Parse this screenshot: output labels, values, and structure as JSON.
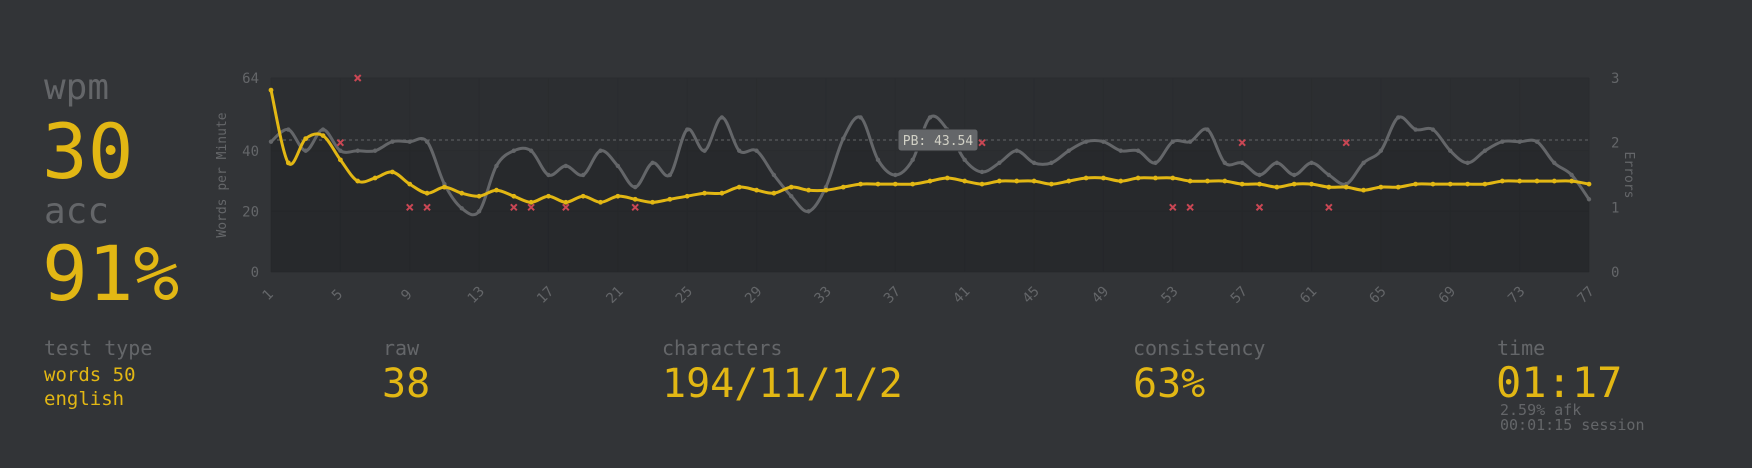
{
  "stats": {
    "wpm_label": "wpm",
    "wpm_value": "30",
    "acc_label": "acc",
    "acc_value": "91%",
    "test_type_label": "test type",
    "test_type_value1": "words 50",
    "test_type_value2": "english",
    "raw_label": "raw",
    "raw_value": "38",
    "characters_label": "characters",
    "characters_value": "194/11/1/2",
    "consistency_label": "consistency",
    "consistency_value": "63%",
    "time_label": "time",
    "time_value": "01:17",
    "afk_text": "2.59% afk",
    "session_text": "00:01:15 session"
  },
  "colors": {
    "background": "#323437",
    "main": "#e2b714",
    "sub": "#646669",
    "raw_line": "#646669",
    "error": "#ca4754"
  },
  "chart_data": {
    "type": "line",
    "ylabel": "Words per Minute",
    "y2label": "Errors",
    "ylim": [
      0,
      64
    ],
    "y2lim": [
      0,
      3
    ],
    "yticks": [
      "0",
      "20",
      "40",
      "64"
    ],
    "y2ticks": [
      "0",
      "1",
      "2",
      "3"
    ],
    "x": [
      1,
      2,
      3,
      4,
      5,
      6,
      7,
      8,
      9,
      10,
      11,
      12,
      13,
      14,
      15,
      16,
      17,
      18,
      19,
      20,
      21,
      22,
      23,
      24,
      25,
      26,
      27,
      28,
      29,
      30,
      31,
      32,
      33,
      34,
      35,
      36,
      37,
      38,
      39,
      40,
      41,
      42,
      43,
      44,
      45,
      46,
      47,
      48,
      49,
      50,
      51,
      52,
      53,
      54,
      55,
      56,
      57,
      58,
      59,
      60,
      61,
      62,
      63,
      64,
      65,
      66,
      67,
      68,
      69,
      70,
      71,
      72,
      73,
      74,
      75,
      76,
      77
    ],
    "xtick_labels": [
      "1",
      "5",
      "9",
      "13",
      "17",
      "21",
      "25",
      "29",
      "33",
      "37",
      "41",
      "45",
      "49",
      "53",
      "57",
      "61",
      "65",
      "69",
      "73",
      "77"
    ],
    "pb_label": "PB: 43.54",
    "pb_value": 43.54,
    "series": [
      {
        "name": "wpm",
        "color": "#e2b714",
        "values": [
          60,
          36,
          44,
          45,
          37,
          30,
          31,
          33,
          29,
          26,
          28,
          26,
          25,
          27,
          25,
          23,
          25,
          23,
          25,
          23,
          25,
          24,
          23,
          24,
          25,
          26,
          26,
          28,
          27,
          26,
          28,
          27,
          27,
          28,
          29,
          29,
          29,
          29,
          30,
          31,
          30,
          29,
          30,
          30,
          30,
          29,
          30,
          31,
          31,
          30,
          31,
          31,
          31,
          30,
          30,
          30,
          29,
          29,
          28,
          29,
          29,
          28,
          28,
          27,
          28,
          28,
          29,
          29,
          29,
          29,
          29,
          30,
          30,
          30,
          30,
          30,
          29
        ]
      },
      {
        "name": "raw",
        "color": "#646669",
        "values": [
          43,
          47,
          40,
          47,
          40,
          40,
          40,
          43,
          43,
          43,
          29,
          21,
          20,
          35,
          40,
          40,
          32,
          35,
          32,
          40,
          35,
          28,
          36,
          32,
          47,
          40,
          51,
          40,
          40,
          32,
          25,
          20,
          28,
          44,
          51,
          37,
          32,
          37,
          51,
          47,
          37,
          33,
          36,
          40,
          36,
          36,
          40,
          43,
          43,
          40,
          40,
          36,
          43,
          43,
          47,
          36,
          36,
          32,
          36,
          32,
          36,
          32,
          29,
          36,
          40,
          51,
          47,
          47,
          40,
          36,
          40,
          43,
          43,
          43,
          36,
          32,
          24
        ]
      },
      {
        "name": "errors",
        "color": "#ca4754",
        "points": [
          [
            5,
            2
          ],
          [
            6,
            3
          ],
          [
            9,
            1
          ],
          [
            10,
            1
          ],
          [
            15,
            1
          ],
          [
            16,
            1
          ],
          [
            18,
            1
          ],
          [
            22,
            1
          ],
          [
            42,
            2
          ],
          [
            53,
            1
          ],
          [
            54,
            1
          ],
          [
            57,
            2
          ],
          [
            58,
            1
          ],
          [
            62,
            1
          ],
          [
            63,
            2
          ]
        ]
      }
    ]
  }
}
